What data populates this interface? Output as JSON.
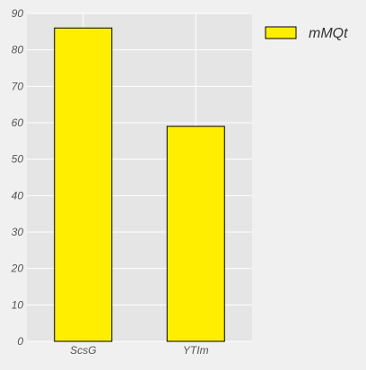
{
  "chart_data": {
    "type": "bar",
    "title": "",
    "xlabel": "",
    "ylabel": "",
    "categories": [
      "ScsG",
      "YTIm"
    ],
    "series": [
      {
        "name": "mMQt",
        "values": [
          86,
          59
        ],
        "color": "#ffee00"
      }
    ],
    "ylim": [
      0,
      90
    ],
    "yticks": [
      "0",
      "10",
      "20",
      "30",
      "40",
      "50",
      "60",
      "70",
      "80",
      "90"
    ],
    "grid": true,
    "legend_position": "right"
  },
  "colors": {
    "background": "#f0f0f0",
    "plot_background": "#e5e5e5",
    "grid": "#ffffff",
    "bar_edge": "#000000"
  }
}
